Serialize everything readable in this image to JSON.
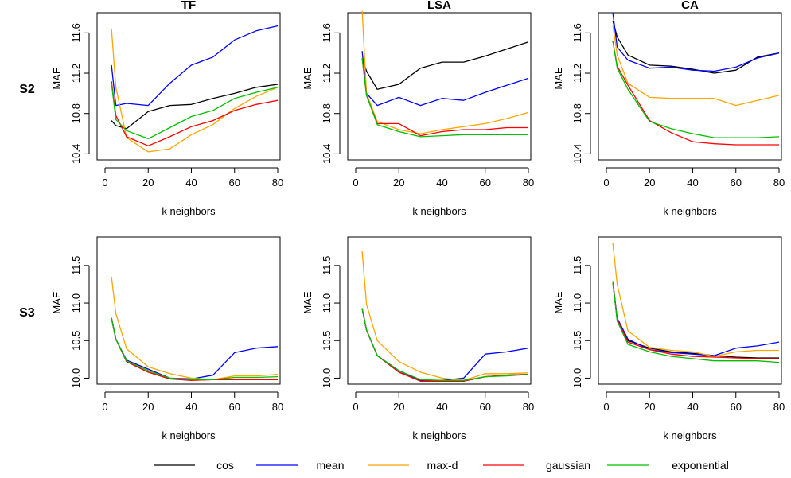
{
  "legend": {
    "cos": "cos",
    "mean": "mean",
    "maxd": "max-d",
    "gaussian": "gaussian",
    "exponential": "exponential"
  },
  "colors": {
    "cos": "#000000",
    "mean": "#0000ff",
    "maxd": "#ffa500",
    "gaussian": "#ff0000",
    "exponential": "#00c000"
  },
  "row_labels": {
    "s2": "S2",
    "s3": "S3"
  },
  "chart_data": [
    {
      "type": "line",
      "panel": "s2-tf",
      "title": "TF",
      "ylabel": "MAE",
      "xlabel": "k neighbors",
      "xlim": [
        0,
        80
      ],
      "ylim": [
        10.34,
        11.8
      ],
      "xticks": [
        "0",
        "20",
        "40",
        "60",
        "80"
      ],
      "yticks": [
        "10.4",
        "10.8",
        "11.2",
        "11.6"
      ],
      "x": [
        3,
        5,
        10,
        20,
        30,
        40,
        50,
        60,
        70,
        80
      ],
      "series": [
        {
          "name": "cos",
          "values": [
            10.73,
            10.68,
            10.65,
            10.82,
            10.88,
            10.89,
            10.95,
            11.0,
            11.06,
            11.09
          ]
        },
        {
          "name": "mean",
          "values": [
            11.28,
            10.88,
            10.9,
            10.88,
            11.1,
            11.28,
            11.36,
            11.53,
            11.62,
            11.67
          ]
        },
        {
          "name": "max-d",
          "values": [
            11.64,
            11.06,
            10.56,
            10.42,
            10.45,
            10.59,
            10.69,
            10.85,
            10.97,
            11.06
          ]
        },
        {
          "name": "gaussian",
          "values": [
            11.12,
            10.78,
            10.57,
            10.48,
            10.57,
            10.67,
            10.73,
            10.83,
            10.89,
            10.93
          ]
        },
        {
          "name": "exponential",
          "values": [
            11.1,
            10.74,
            10.63,
            10.55,
            10.66,
            10.77,
            10.83,
            10.95,
            11.01,
            11.06
          ]
        }
      ]
    },
    {
      "type": "line",
      "panel": "s2-lsa",
      "title": "LSA",
      "ylabel": "MAE",
      "xlabel": "k neighbors",
      "xlim": [
        0,
        80
      ],
      "ylim": [
        10.34,
        11.8
      ],
      "xticks": [
        "0",
        "20",
        "40",
        "60",
        "80"
      ],
      "yticks": [
        "10.4",
        "10.8",
        "11.2",
        "11.6"
      ],
      "x": [
        3,
        5,
        10,
        20,
        30,
        40,
        50,
        60,
        70,
        80
      ],
      "series": [
        {
          "name": "cos",
          "values": [
            11.35,
            11.22,
            11.04,
            11.09,
            11.25,
            11.31,
            11.31,
            11.37,
            11.44,
            11.51
          ]
        },
        {
          "name": "mean",
          "values": [
            11.42,
            11.0,
            10.88,
            10.96,
            10.88,
            10.95,
            10.93,
            11.01,
            11.08,
            11.15
          ]
        },
        {
          "name": "max-d",
          "values": [
            11.82,
            11.0,
            10.72,
            10.64,
            10.6,
            10.64,
            10.67,
            10.7,
            10.75,
            10.81
          ]
        },
        {
          "name": "gaussian",
          "values": [
            11.35,
            10.98,
            10.7,
            10.7,
            10.58,
            10.62,
            10.64,
            10.64,
            10.66,
            10.66
          ]
        },
        {
          "name": "exponential",
          "values": [
            11.35,
            10.98,
            10.69,
            10.62,
            10.57,
            10.58,
            10.59,
            10.59,
            10.59,
            10.59
          ]
        }
      ]
    },
    {
      "type": "line",
      "panel": "s2-ca",
      "title": "CA",
      "ylabel": "MAE",
      "xlabel": "k neighbors",
      "xlim": [
        0,
        80
      ],
      "ylim": [
        10.34,
        11.8
      ],
      "xticks": [
        "0",
        "20",
        "40",
        "60",
        "80"
      ],
      "yticks": [
        "10.4",
        "10.8",
        "11.2",
        "11.6"
      ],
      "x": [
        3,
        5,
        10,
        20,
        30,
        40,
        50,
        60,
        70,
        80
      ],
      "series": [
        {
          "name": "cos",
          "values": [
            11.72,
            11.56,
            11.38,
            11.28,
            11.27,
            11.24,
            11.2,
            11.23,
            11.36,
            11.4
          ]
        },
        {
          "name": "mean",
          "values": [
            11.8,
            11.46,
            11.33,
            11.25,
            11.26,
            11.23,
            11.22,
            11.26,
            11.35,
            11.4
          ]
        },
        {
          "name": "max-d",
          "values": [
            11.68,
            11.38,
            11.1,
            10.96,
            10.95,
            10.95,
            10.95,
            10.88,
            10.93,
            10.98
          ]
        },
        {
          "name": "gaussian",
          "values": [
            11.52,
            11.27,
            11.08,
            10.73,
            10.61,
            10.52,
            10.5,
            10.49,
            10.49,
            10.49
          ]
        },
        {
          "name": "exponential",
          "values": [
            11.52,
            11.25,
            11.04,
            10.72,
            10.65,
            10.6,
            10.56,
            10.56,
            10.56,
            10.57
          ]
        }
      ]
    },
    {
      "type": "line",
      "panel": "s3-tf",
      "title": "",
      "ylabel": "MAE",
      "xlabel": "k neighbors",
      "xlim": [
        0,
        80
      ],
      "ylim": [
        9.92,
        11.88
      ],
      "xticks": [
        "0",
        "20",
        "40",
        "60",
        "80"
      ],
      "yticks": [
        "10.0",
        "10.5",
        "11.0",
        "11.5"
      ],
      "x": [
        3,
        5,
        10,
        20,
        30,
        40,
        50,
        60,
        70,
        80
      ],
      "series": [
        {
          "name": "cos",
          "values": [
            10.8,
            10.52,
            10.22,
            10.08,
            9.99,
            9.98,
            9.98,
            9.98,
            9.98,
            9.98
          ]
        },
        {
          "name": "mean",
          "values": [
            10.8,
            10.52,
            10.24,
            10.12,
            10.0,
            9.99,
            10.04,
            10.34,
            10.4,
            10.42
          ]
        },
        {
          "name": "max-d",
          "values": [
            11.35,
            10.86,
            10.39,
            10.15,
            10.06,
            10.0,
            9.98,
            10.03,
            10.03,
            10.05
          ]
        },
        {
          "name": "gaussian",
          "values": [
            10.8,
            10.52,
            10.22,
            10.08,
            9.99,
            9.97,
            9.98,
            9.98,
            9.98,
            9.98
          ]
        },
        {
          "name": "exponential",
          "values": [
            10.8,
            10.52,
            10.23,
            10.1,
            10.0,
            9.98,
            9.98,
            10.01,
            10.01,
            10.02
          ]
        }
      ]
    },
    {
      "type": "line",
      "panel": "s3-lsa",
      "title": "",
      "ylabel": "MAE",
      "xlabel": "k neighbors",
      "xlim": [
        0,
        80
      ],
      "ylim": [
        9.92,
        11.88
      ],
      "xticks": [
        "0",
        "20",
        "40",
        "60",
        "80"
      ],
      "yticks": [
        "10.0",
        "10.5",
        "11.0",
        "11.5"
      ],
      "x": [
        3,
        5,
        10,
        20,
        30,
        40,
        50,
        60,
        70,
        80
      ],
      "series": [
        {
          "name": "cos",
          "values": [
            10.93,
            10.64,
            10.3,
            10.08,
            9.96,
            9.96,
            9.96,
            10.02,
            10.04,
            10.05
          ]
        },
        {
          "name": "mean",
          "values": [
            10.93,
            10.64,
            10.3,
            10.1,
            9.97,
            9.97,
            10.0,
            10.32,
            10.35,
            10.4
          ]
        },
        {
          "name": "max-d",
          "values": [
            11.69,
            10.98,
            10.5,
            10.22,
            10.08,
            10.0,
            9.97,
            10.06,
            10.06,
            10.07
          ]
        },
        {
          "name": "gaussian",
          "values": [
            10.93,
            10.64,
            10.3,
            10.08,
            9.96,
            9.96,
            9.96,
            10.02,
            10.04,
            10.05
          ]
        },
        {
          "name": "exponential",
          "values": [
            10.93,
            10.64,
            10.3,
            10.1,
            9.98,
            9.97,
            9.97,
            10.02,
            10.03,
            10.05
          ]
        }
      ]
    },
    {
      "type": "line",
      "panel": "s3-ca",
      "title": "",
      "ylabel": "MAE",
      "xlabel": "k neighbors",
      "xlim": [
        0,
        80
      ],
      "ylim": [
        9.92,
        11.88
      ],
      "xticks": [
        "0",
        "20",
        "40",
        "60",
        "80"
      ],
      "yticks": [
        "10.0",
        "10.5",
        "11.0",
        "11.5"
      ],
      "x": [
        3,
        5,
        10,
        20,
        30,
        40,
        50,
        60,
        70,
        80
      ],
      "series": [
        {
          "name": "cos",
          "values": [
            11.28,
            10.78,
            10.5,
            10.4,
            10.35,
            10.33,
            10.3,
            10.28,
            10.27,
            10.27
          ]
        },
        {
          "name": "mean",
          "values": [
            11.29,
            10.8,
            10.52,
            10.38,
            10.34,
            10.32,
            10.3,
            10.4,
            10.43,
            10.48
          ]
        },
        {
          "name": "max-d",
          "values": [
            11.8,
            11.25,
            10.63,
            10.41,
            10.37,
            10.35,
            10.29,
            10.35,
            10.37,
            10.37
          ]
        },
        {
          "name": "gaussian",
          "values": [
            11.28,
            10.78,
            10.48,
            10.38,
            10.32,
            10.29,
            10.28,
            10.27,
            10.26,
            10.26
          ]
        },
        {
          "name": "exponential",
          "values": [
            11.28,
            10.76,
            10.45,
            10.35,
            10.29,
            10.26,
            10.23,
            10.23,
            10.23,
            10.21
          ]
        }
      ]
    }
  ]
}
